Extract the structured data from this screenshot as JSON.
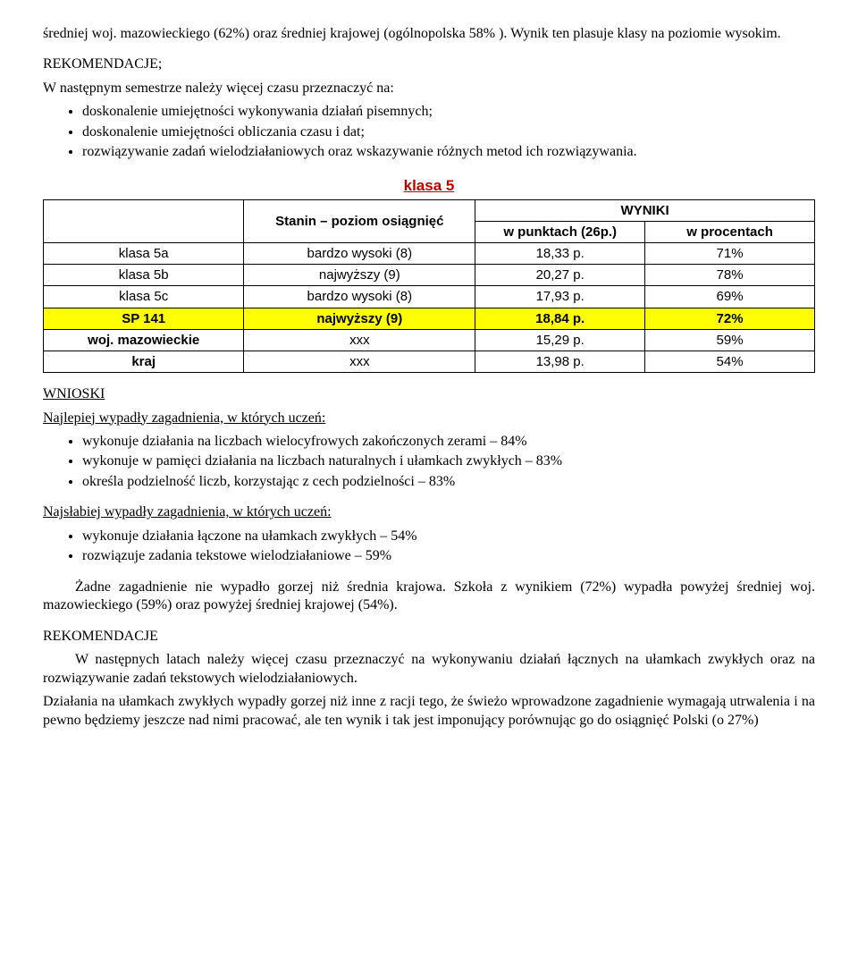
{
  "intro": {
    "p1": "średniej woj. mazowieckiego (62%) oraz  średniej krajowej (ogólnopolska 58% ). Wynik ten plasuje klasy na poziomie wysokim."
  },
  "rekomendacje1": {
    "heading": "REKOMENDACJE;",
    "lead": "W następnym semestrze należy więcej czasu przeznaczyć na:",
    "items": [
      "doskonalenie umiejętności wykonywania działań pisemnych;",
      "doskonalenie umiejętności obliczania czasu i dat;",
      "rozwiązywanie zadań wielodziałaniowych oraz wskazywanie różnych metod ich rozwiązywania."
    ]
  },
  "table": {
    "title": "klasa 5",
    "header": {
      "stanin": "Stanin – poziom osiągnięć",
      "wyniki": "WYNIKI",
      "punkty": "w punktach (26p.)",
      "procenty": "w procentach"
    },
    "rows": [
      {
        "label": "klasa 5a",
        "stanin": "bardzo wysoki (8)",
        "pts": "18,33 p.",
        "pct": "71%",
        "hl": false,
        "bold": false
      },
      {
        "label": "klasa 5b",
        "stanin": "najwyższy (9)",
        "pts": "20,27 p.",
        "pct": "78%",
        "hl": false,
        "bold": false
      },
      {
        "label": "klasa 5c",
        "stanin": "bardzo wysoki (8)",
        "pts": "17,93 p.",
        "pct": "69%",
        "hl": false,
        "bold": false
      },
      {
        "label": "SP 141",
        "stanin": "najwyższy (9)",
        "pts": "18,84 p.",
        "pct": "72%",
        "hl": true,
        "bold": true
      },
      {
        "label": "woj. mazowieckie",
        "stanin": "xxx",
        "pts": "15,29 p.",
        "pct": "59%",
        "hl": false,
        "bold": true
      },
      {
        "label": "kraj",
        "stanin": "xxx",
        "pts": "13,98 p.",
        "pct": "54%",
        "hl": false,
        "bold": true
      }
    ]
  },
  "wnioski": {
    "heading": "WNIOSKI",
    "best_lead": "Najlepiej wypadły zagadnienia, w których uczeń:",
    "best_items": [
      "wykonuje działania na liczbach wielocyfrowych zakończonych zerami – 84%",
      "wykonuje w pamięci działania na liczbach naturalnych i ułamkach zwykłych  – 83%",
      "określa podzielność liczb, korzystając z cech podzielności – 83%"
    ],
    "worst_lead": "Najsłabiej wypadły zagadnienia, w których uczeń:",
    "worst_items": [
      "wykonuje działania łączone na ułamkach zwykłych – 54%",
      "rozwiązuje zadania tekstowe wielodziałaniowe – 59%"
    ],
    "summary": "Żadne zagadnienie nie wypadło gorzej niż średnia krajowa. Szkoła z wynikiem (72%) wypadła powyżej  średniej woj. mazowieckiego (59%) oraz powyżej średniej krajowej (54%)."
  },
  "rekomendacje2": {
    "heading": "REKOMENDACJE",
    "p1": "W następnych latach należy więcej czasu przeznaczyć na wykonywaniu działań łącznych na ułamkach zwykłych oraz na rozwiązywanie zadań tekstowych wielodziałaniowych.",
    "p2": "Działania na ułamkach zwykłych wypadły gorzej niż inne z racji tego, że świeżo wprowadzone zagadnienie wymagają utrwalenia i na pewno będziemy jeszcze nad nimi pracować, ale ten wynik i tak jest imponujący porównując go do osiągnięć Polski (o 27%)"
  }
}
